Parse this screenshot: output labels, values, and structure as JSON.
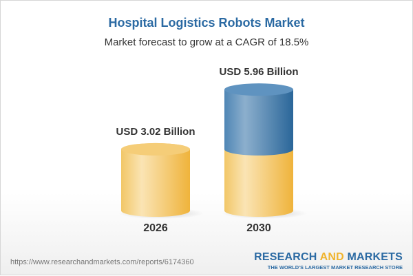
{
  "title": "Hospital Logistics Robots Market",
  "subtitle": "Market forecast to grow at a CAGR of 18.5%",
  "chart_data": {
    "type": "bar",
    "style": "3d-cylinder",
    "categories": [
      "2026",
      "2030"
    ],
    "values": [
      3.02,
      5.96
    ],
    "value_labels": [
      "USD 3.02 Billion",
      "USD 5.96 Billion"
    ],
    "unit": "USD Billion",
    "cagr": "18.5%",
    "colors": {
      "base": "#f3c35a",
      "growth": "#3f7bb0"
    }
  },
  "footer": {
    "url": "https://www.researchandmarkets.com/reports/6174360",
    "logo_part1": "RESEARCH ",
    "logo_part2": "AND",
    "logo_part3": " MARKETS",
    "tagline": "THE WORLD'S LARGEST MARKET RESEARCH STORE"
  }
}
